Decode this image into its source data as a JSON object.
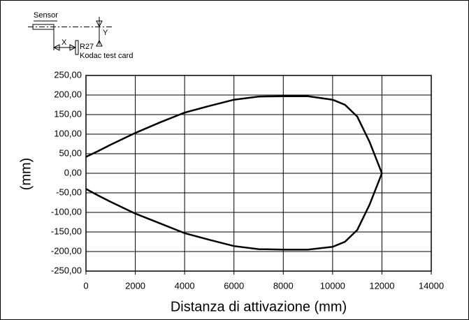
{
  "chart_data": {
    "type": "line",
    "annotations": [
      "Sensor",
      "X",
      "Y",
      "R27",
      "Kodac test card"
    ],
    "xlabel": "Distanza di attivazione (mm)",
    "ylabel": "(mm)",
    "x": [
      0,
      500,
      1000,
      2000,
      3000,
      4000,
      5000,
      6000,
      7000,
      8000,
      9000,
      10000,
      10500,
      11000,
      11500,
      12000,
      11500,
      11000,
      10500,
      10000,
      9000,
      8000,
      7000,
      6000,
      5000,
      4000,
      3000,
      2000,
      1000,
      500,
      0
    ],
    "values": [
      42,
      57,
      73,
      103,
      130,
      155,
      172,
      188,
      196,
      197,
      197,
      188,
      175,
      145,
      80,
      0,
      -80,
      -145,
      -175,
      -188,
      -195,
      -195,
      -194,
      -186,
      -170,
      -153,
      -128,
      -103,
      -73,
      -57,
      -40
    ],
    "color": "#000000",
    "xlim": [
      0,
      14000
    ],
    "xticks": [
      0,
      2000,
      4000,
      6000,
      8000,
      10000,
      12000,
      14000
    ],
    "ylim": [
      -250,
      250
    ],
    "yticks": [
      {
        "value": -250,
        "label": "-250,00"
      },
      {
        "value": -200,
        "label": "-200,00"
      },
      {
        "value": -150,
        "label": "-150,00"
      },
      {
        "value": -100,
        "label": "-100,00"
      },
      {
        "value": -50,
        "label": "-50,00"
      },
      {
        "value": 0,
        "label": "0,00"
      },
      {
        "value": 50,
        "label": "50,00"
      },
      {
        "value": 100,
        "label": "100,00"
      },
      {
        "value": 150,
        "label": "150,00"
      },
      {
        "value": 200,
        "label": "200,00"
      },
      {
        "value": 250,
        "label": "250,00"
      }
    ],
    "grid": true
  }
}
